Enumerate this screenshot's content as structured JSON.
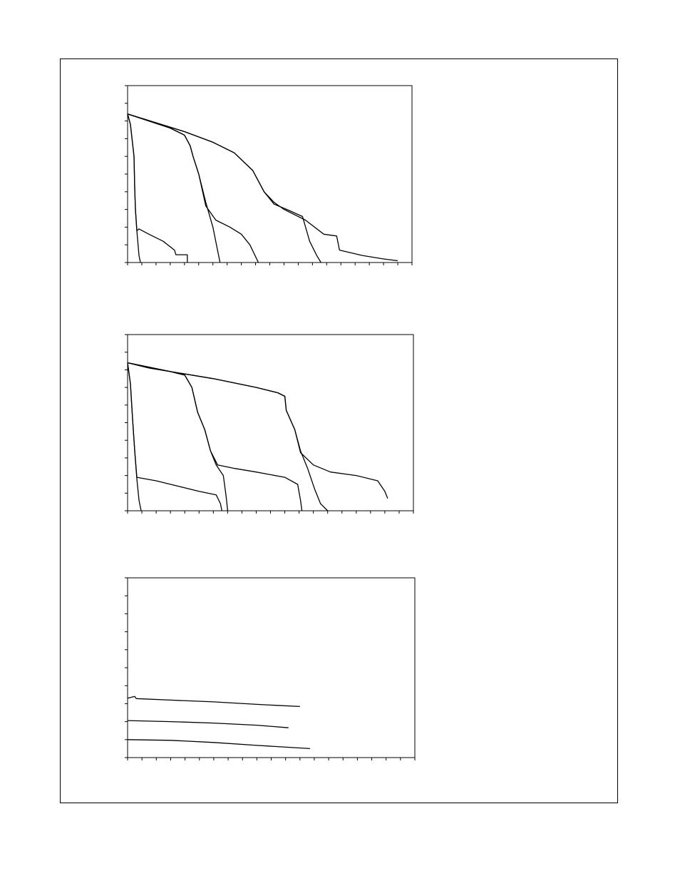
{
  "page": {
    "background": "#ffffff",
    "ink": "#000000"
  },
  "chart_data": [
    {
      "type": "line",
      "title": "",
      "xlabel": "",
      "ylabel": "",
      "xlim": [
        0,
        20
      ],
      "ylim": [
        0,
        5
      ],
      "grid": false,
      "series": [
        {
          "points": [
            [
              0,
              4.2
            ],
            [
              0.2,
              3.9
            ],
            [
              0.45,
              3.0
            ],
            [
              0.5,
              2.1
            ],
            [
              0.55,
              1.5
            ],
            [
              0.65,
              0.9
            ],
            [
              0.8,
              0.2
            ],
            [
              0.9,
              0
            ]
          ]
        },
        {
          "points": [
            [
              0,
              4.2
            ],
            [
              0.2,
              3.9
            ],
            [
              0.45,
              3.0
            ],
            [
              0.5,
              2.1
            ],
            [
              0.55,
              1.5
            ],
            [
              0.65,
              0.9
            ],
            [
              0.8,
              0.95
            ],
            [
              1.5,
              0.8
            ],
            [
              2.5,
              0.6
            ],
            [
              3.3,
              0.35
            ],
            [
              3.4,
              0.22
            ],
            [
              4.2,
              0.22
            ],
            [
              4.2,
              0
            ]
          ]
        },
        {
          "points": [
            [
              0,
              4.2
            ],
            [
              1.5,
              4.0
            ],
            [
              3.0,
              3.8
            ],
            [
              4.0,
              3.6
            ],
            [
              4.4,
              3.3
            ],
            [
              4.6,
              3.0
            ],
            [
              5.0,
              2.5
            ],
            [
              5.5,
              1.7
            ],
            [
              6.0,
              1.0
            ],
            [
              6.3,
              0.4
            ],
            [
              6.5,
              0
            ]
          ]
        },
        {
          "points": [
            [
              0,
              4.2
            ],
            [
              1.5,
              4.0
            ],
            [
              3.0,
              3.8
            ],
            [
              4.0,
              3.6
            ],
            [
              4.4,
              3.3
            ],
            [
              4.6,
              3.0
            ],
            [
              5.0,
              2.5
            ],
            [
              5.5,
              1.6
            ],
            [
              6.2,
              1.2
            ],
            [
              7.2,
              1.0
            ],
            [
              8.0,
              0.8
            ],
            [
              8.6,
              0.5
            ],
            [
              9.2,
              0
            ]
          ]
        },
        {
          "points": [
            [
              0,
              4.2
            ],
            [
              2.0,
              3.95
            ],
            [
              4.0,
              3.7
            ],
            [
              6.0,
              3.4
            ],
            [
              7.5,
              3.1
            ],
            [
              8.8,
              2.6
            ],
            [
              9.6,
              2.0
            ],
            [
              10.3,
              1.65
            ],
            [
              11.2,
              1.5
            ],
            [
              12.3,
              1.3
            ],
            [
              12.8,
              0.6
            ],
            [
              13.3,
              0.2
            ],
            [
              13.6,
              0
            ]
          ]
        },
        {
          "points": [
            [
              0,
              4.2
            ],
            [
              2.0,
              3.95
            ],
            [
              4.0,
              3.7
            ],
            [
              6.0,
              3.4
            ],
            [
              7.5,
              3.1
            ],
            [
              8.8,
              2.6
            ],
            [
              9.6,
              2.0
            ],
            [
              10.3,
              1.7
            ],
            [
              11.0,
              1.5
            ],
            [
              12.5,
              1.2
            ],
            [
              13.8,
              0.8
            ],
            [
              14.7,
              0.75
            ],
            [
              14.9,
              0.35
            ],
            [
              16.5,
              0.2
            ],
            [
              18.0,
              0.1
            ],
            [
              19.0,
              0.05
            ]
          ]
        }
      ]
    },
    {
      "type": "line",
      "title": "",
      "xlabel": "",
      "ylabel": "",
      "xlim": [
        0,
        20
      ],
      "ylim": [
        0,
        5
      ],
      "grid": false,
      "series": [
        {
          "points": [
            [
              0,
              4.2
            ],
            [
              0.2,
              3.6
            ],
            [
              0.35,
              2.6
            ],
            [
              0.5,
              1.7
            ],
            [
              0.65,
              0.9
            ],
            [
              0.8,
              0.3
            ],
            [
              0.95,
              0
            ]
          ]
        },
        {
          "points": [
            [
              0,
              4.2
            ],
            [
              0.2,
              3.6
            ],
            [
              0.35,
              2.6
            ],
            [
              0.5,
              1.7
            ],
            [
              0.65,
              0.95
            ],
            [
              2.0,
              0.85
            ],
            [
              3.5,
              0.7
            ],
            [
              5.0,
              0.55
            ],
            [
              6.2,
              0.45
            ],
            [
              6.5,
              0.2
            ],
            [
              6.6,
              0
            ]
          ]
        },
        {
          "points": [
            [
              0,
              4.2
            ],
            [
              1.5,
              4.05
            ],
            [
              3.0,
              3.95
            ],
            [
              4.0,
              3.85
            ],
            [
              4.5,
              3.5
            ],
            [
              4.9,
              2.8
            ],
            [
              5.4,
              2.3
            ],
            [
              5.8,
              1.7
            ],
            [
              6.2,
              1.3
            ],
            [
              6.7,
              1.0
            ],
            [
              6.9,
              0.4
            ],
            [
              7.0,
              0
            ]
          ]
        },
        {
          "points": [
            [
              0,
              4.2
            ],
            [
              1.5,
              4.05
            ],
            [
              3.0,
              3.95
            ],
            [
              4.0,
              3.85
            ],
            [
              4.5,
              3.5
            ],
            [
              4.9,
              2.8
            ],
            [
              5.4,
              2.3
            ],
            [
              5.8,
              1.7
            ],
            [
              6.3,
              1.3
            ],
            [
              7.5,
              1.2
            ],
            [
              9.0,
              1.1
            ],
            [
              11.0,
              0.95
            ],
            [
              11.9,
              0.75
            ],
            [
              12.1,
              0.3
            ],
            [
              12.2,
              0
            ]
          ]
        },
        {
          "points": [
            [
              0,
              4.2
            ],
            [
              3.0,
              3.95
            ],
            [
              6.0,
              3.75
            ],
            [
              9.0,
              3.5
            ],
            [
              10.5,
              3.35
            ],
            [
              11.0,
              3.25
            ],
            [
              11.1,
              2.85
            ],
            [
              11.7,
              2.3
            ],
            [
              12.1,
              1.7
            ],
            [
              12.6,
              1.2
            ],
            [
              13.1,
              0.6
            ],
            [
              13.5,
              0.2
            ],
            [
              14.0,
              0
            ]
          ]
        },
        {
          "points": [
            [
              0,
              4.2
            ],
            [
              3.0,
              3.95
            ],
            [
              6.0,
              3.75
            ],
            [
              9.0,
              3.5
            ],
            [
              10.5,
              3.35
            ],
            [
              11.0,
              3.25
            ],
            [
              11.1,
              2.85
            ],
            [
              11.7,
              2.3
            ],
            [
              12.1,
              1.65
            ],
            [
              13.0,
              1.3
            ],
            [
              14.2,
              1.1
            ],
            [
              16.0,
              1.0
            ],
            [
              17.5,
              0.85
            ],
            [
              18.0,
              0.55
            ],
            [
              18.2,
              0.35
            ]
          ]
        }
      ]
    },
    {
      "type": "line",
      "title": "",
      "xlabel": "",
      "ylabel": "",
      "xlim": [
        0,
        20
      ],
      "ylim": [
        0,
        5
      ],
      "grid": false,
      "series": [
        {
          "points": [
            [
              0,
              1.65
            ],
            [
              0.3,
              1.68
            ],
            [
              0.5,
              1.7
            ],
            [
              0.6,
              1.64
            ],
            [
              3.0,
              1.6
            ],
            [
              6.0,
              1.55
            ],
            [
              9.0,
              1.48
            ],
            [
              12.0,
              1.42
            ]
          ]
        },
        {
          "points": [
            [
              0,
              1.03
            ],
            [
              3.0,
              1.0
            ],
            [
              6.0,
              0.96
            ],
            [
              9.0,
              0.9
            ],
            [
              11.2,
              0.83
            ]
          ]
        },
        {
          "points": [
            [
              0,
              0.5
            ],
            [
              3.0,
              0.48
            ],
            [
              6.0,
              0.42
            ],
            [
              9.0,
              0.34
            ],
            [
              12.7,
              0.25
            ]
          ]
        }
      ]
    }
  ]
}
